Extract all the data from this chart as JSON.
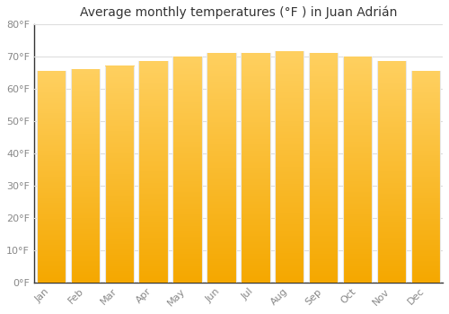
{
  "title": "Average monthly temperatures (°F ) in Juan Adrián",
  "months": [
    "Jan",
    "Feb",
    "Mar",
    "Apr",
    "May",
    "Jun",
    "Jul",
    "Aug",
    "Sep",
    "Oct",
    "Nov",
    "Dec"
  ],
  "values": [
    65.5,
    66.0,
    67.0,
    68.5,
    70.0,
    71.0,
    71.0,
    71.5,
    71.0,
    70.0,
    68.5,
    65.5
  ],
  "bar_color_bottom": "#F5A800",
  "bar_color_top": "#FFD060",
  "bar_edge_color": "#E8E8E8",
  "background_color": "#FFFFFF",
  "grid_color": "#DDDDDD",
  "ylim": [
    0,
    80
  ],
  "yticks": [
    0,
    10,
    20,
    30,
    40,
    50,
    60,
    70,
    80
  ],
  "title_fontsize": 10,
  "tick_fontsize": 8,
  "tick_color": "#888888",
  "bar_width": 0.85
}
